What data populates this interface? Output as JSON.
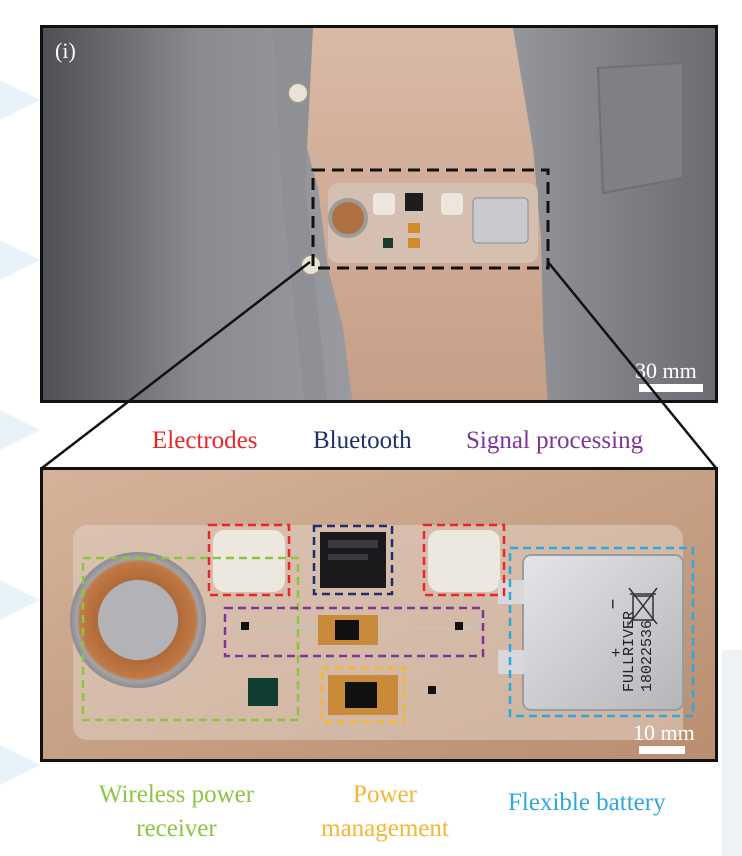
{
  "panel_label": "(i)",
  "labels": {
    "electrodes": "Electrodes",
    "bluetooth": "Bluetooth",
    "signal_processing": "Signal processing",
    "wireless_power_line1": "Wireless power",
    "wireless_power_line2": "receiver",
    "power_mgmt_line1": "Power",
    "power_mgmt_line2": "management",
    "flexible_battery": "Flexible battery"
  },
  "scale_top": "30 mm",
  "scale_bottom": "10 mm",
  "battery_text_1": "FULLRIVER",
  "battery_text_2": "18022536",
  "battery_minus": "–",
  "battery_plus": "+",
  "colors": {
    "electrodes": "#e8262a",
    "bluetooth": "#1f2f6e",
    "signal_processing": "#7d3596",
    "wireless_power": "#8dc540",
    "power_mgmt": "#f6b632",
    "flexible_battery": "#2ea7dc"
  }
}
